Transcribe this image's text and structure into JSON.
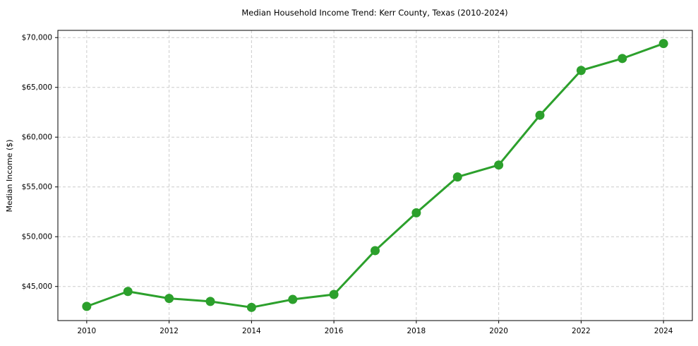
{
  "chart_data": {
    "type": "line",
    "title": "Median Household Income Trend: Kerr County, Texas (2010-2024)",
    "ylabel": "Median Income ($)",
    "xlabel": "",
    "series": [
      {
        "name": "Median household income",
        "x": [
          2010,
          2011,
          2012,
          2013,
          2014,
          2015,
          2016,
          2017,
          2018,
          2019,
          2020,
          2021,
          2022,
          2023,
          2024
        ],
        "values": [
          43000,
          44500,
          43800,
          43500,
          42900,
          43700,
          44200,
          48600,
          52400,
          56000,
          57200,
          62200,
          66700,
          67900,
          69400
        ]
      }
    ],
    "xticks": [
      2010,
      2012,
      2014,
      2016,
      2018,
      2020,
      2022,
      2024
    ],
    "yticks": [
      45000,
      50000,
      55000,
      60000,
      65000,
      70000
    ],
    "ytick_prefix": "$",
    "xlim": [
      2009.3,
      2024.7
    ],
    "ylim": [
      41575,
      70725
    ],
    "grid": true,
    "grid_style": "dashed",
    "legend_position": "none",
    "colors": {
      "line": "#2ca02c",
      "marker": "#2ca02c",
      "grid": "#cccccc",
      "axis": "#000000",
      "background": "#ffffff",
      "text": "#000000"
    },
    "marker": "circle",
    "marker_radius": 6.5,
    "line_width": 3
  }
}
